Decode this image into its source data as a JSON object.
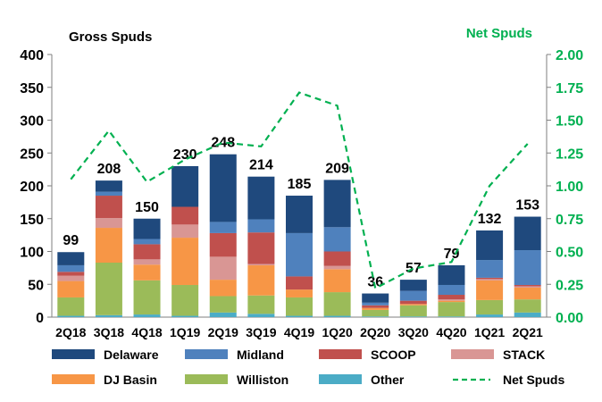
{
  "chart_data": {
    "type": "bar",
    "stacked": true,
    "left_axis_title": "Gross Spuds",
    "right_axis_title": "Net Spuds",
    "categories": [
      "2Q18",
      "3Q18",
      "4Q18",
      "1Q19",
      "2Q19",
      "3Q19",
      "4Q19",
      "1Q20",
      "2Q20",
      "3Q20",
      "4Q20",
      "1Q21",
      "2Q21"
    ],
    "totals": [
      99,
      208,
      150,
      230,
      248,
      214,
      185,
      209,
      36,
      57,
      79,
      132,
      153
    ],
    "ylim_left": [
      0,
      400
    ],
    "yticks_left": [
      "0",
      "50",
      "100",
      "150",
      "200",
      "250",
      "300",
      "350",
      "400"
    ],
    "ylim_right": [
      0,
      2.0
    ],
    "yticks_right": [
      "0.00",
      "0.25",
      "0.50",
      "0.75",
      "1.00",
      "1.25",
      "1.50",
      "1.75",
      "2.00"
    ],
    "series": [
      {
        "name": "Other",
        "color": "#4bacc6",
        "values": [
          2,
          3,
          4,
          2,
          7,
          5,
          2,
          2,
          1,
          1,
          1,
          4,
          7
        ]
      },
      {
        "name": "Williston",
        "color": "#9bbb59",
        "values": [
          28,
          80,
          52,
          47,
          25,
          28,
          28,
          36,
          10,
          17,
          22,
          22,
          20
        ]
      },
      {
        "name": "DJ Basin",
        "color": "#f79646",
        "values": [
          25,
          53,
          24,
          72,
          25,
          46,
          12,
          35,
          3,
          2,
          2,
          30,
          18
        ]
      },
      {
        "name": "STACK",
        "color": "#d99694",
        "values": [
          8,
          15,
          8,
          20,
          35,
          2,
          0,
          5,
          0,
          0,
          2,
          2,
          2
        ]
      },
      {
        "name": "SCOOP",
        "color": "#c0504d",
        "values": [
          6,
          34,
          23,
          27,
          36,
          48,
          20,
          22,
          4,
          5,
          7,
          2,
          2
        ]
      },
      {
        "name": "Midland",
        "color": "#4f81bd",
        "values": [
          10,
          6,
          8,
          0,
          17,
          20,
          66,
          37,
          4,
          15,
          15,
          27,
          53
        ]
      },
      {
        "name": "Delaware",
        "color": "#1f497d",
        "values": [
          20,
          17,
          31,
          62,
          103,
          65,
          57,
          72,
          14,
          17,
          30,
          45,
          51
        ]
      }
    ],
    "line": {
      "name": "Net Spuds",
      "color": "#00b050",
      "axis": "right",
      "values": [
        1.05,
        1.42,
        1.03,
        1.2,
        1.33,
        1.3,
        1.71,
        1.61,
        0.22,
        0.37,
        0.42,
        1.0,
        1.32
      ]
    },
    "legend": {
      "position": "bottom",
      "items": [
        {
          "name": "Delaware",
          "color": "#1f497d",
          "kind": "box"
        },
        {
          "name": "Midland",
          "color": "#4f81bd",
          "kind": "box"
        },
        {
          "name": "SCOOP",
          "color": "#c0504d",
          "kind": "box"
        },
        {
          "name": "STACK",
          "color": "#d99694",
          "kind": "box"
        },
        {
          "name": "DJ Basin",
          "color": "#f79646",
          "kind": "box"
        },
        {
          "name": "Williston",
          "color": "#9bbb59",
          "kind": "box"
        },
        {
          "name": "Other",
          "color": "#4bacc6",
          "kind": "box"
        },
        {
          "name": "Net Spuds",
          "color": "#00b050",
          "kind": "dash"
        }
      ]
    }
  }
}
